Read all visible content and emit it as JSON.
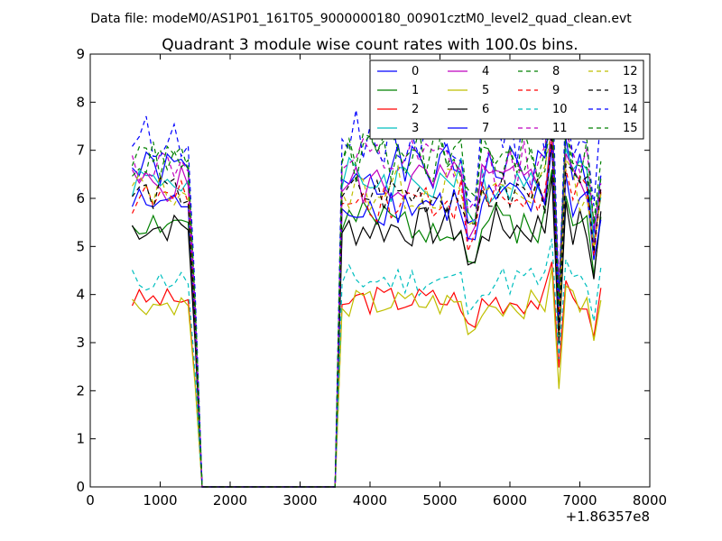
{
  "chart_data": {
    "type": "line",
    "suptitle": "Data file: modeM0/AS1P01_161T05_9000000180_00901cztM0_level2_quad_clean.evt",
    "title": "Quadrant 3 module wise count rates with 100.0s bins.",
    "xlabel": "",
    "ylabel": "",
    "x_offset_label": "+1.86357e8",
    "xlim": [
      0,
      8000
    ],
    "ylim": [
      0,
      9
    ],
    "xticks": [
      0,
      1000,
      2000,
      3000,
      4000,
      5000,
      6000,
      7000,
      8000
    ],
    "xtick_labels": [
      "0",
      "1000",
      "2000",
      "3000",
      "4000",
      "5000",
      "6000",
      "7000",
      "8000"
    ],
    "yticks": [
      0,
      1,
      2,
      3,
      4,
      5,
      6,
      7,
      8,
      9
    ],
    "ytick_labels": [
      "0",
      "1",
      "2",
      "3",
      "4",
      "5",
      "6",
      "7",
      "8",
      "9"
    ],
    "legend_position": "top-right",
    "legend_columns": 4,
    "series": [
      {
        "name": "0",
        "color": "#0000ff",
        "dash": "solid",
        "base": 6.6,
        "seed": 1
      },
      {
        "name": "1",
        "color": "#008000",
        "dash": "solid",
        "base": 5.5,
        "seed": 2
      },
      {
        "name": "2",
        "color": "#ff0000",
        "dash": "solid",
        "base": 3.9,
        "seed": 3
      },
      {
        "name": "3",
        "color": "#00bfbf",
        "dash": "solid",
        "base": 6.4,
        "seed": 4
      },
      {
        "name": "4",
        "color": "#bf00bf",
        "dash": "solid",
        "base": 6.3,
        "seed": 5
      },
      {
        "name": "5",
        "color": "#bfbf00",
        "dash": "solid",
        "base": 3.8,
        "seed": 6
      },
      {
        "name": "6",
        "color": "#000000",
        "dash": "solid",
        "base": 5.4,
        "seed": 7
      },
      {
        "name": "7",
        "color": "#0000ff",
        "dash": "solid",
        "base": 5.9,
        "seed": 8
      },
      {
        "name": "8",
        "color": "#008000",
        "dash": "dashed",
        "base": 6.9,
        "seed": 9
      },
      {
        "name": "9",
        "color": "#ff0000",
        "dash": "dashed",
        "base": 6.0,
        "seed": 10
      },
      {
        "name": "10",
        "color": "#00bfbf",
        "dash": "dashed",
        "base": 4.3,
        "seed": 11
      },
      {
        "name": "11",
        "color": "#bf00bf",
        "dash": "dashed",
        "base": 6.7,
        "seed": 12
      },
      {
        "name": "12",
        "color": "#bfbf00",
        "dash": "dashed",
        "base": 6.2,
        "seed": 13
      },
      {
        "name": "13",
        "color": "#000000",
        "dash": "dashed",
        "base": 6.1,
        "seed": 14
      },
      {
        "name": "14",
        "color": "#0000ff",
        "dash": "dashed",
        "base": 7.3,
        "seed": 15
      },
      {
        "name": "15",
        "color": "#008000",
        "dash": "dashed",
        "base": 6.8,
        "seed": 16
      }
    ],
    "x_start": 600,
    "x_step": 100,
    "n_points": 68
  }
}
